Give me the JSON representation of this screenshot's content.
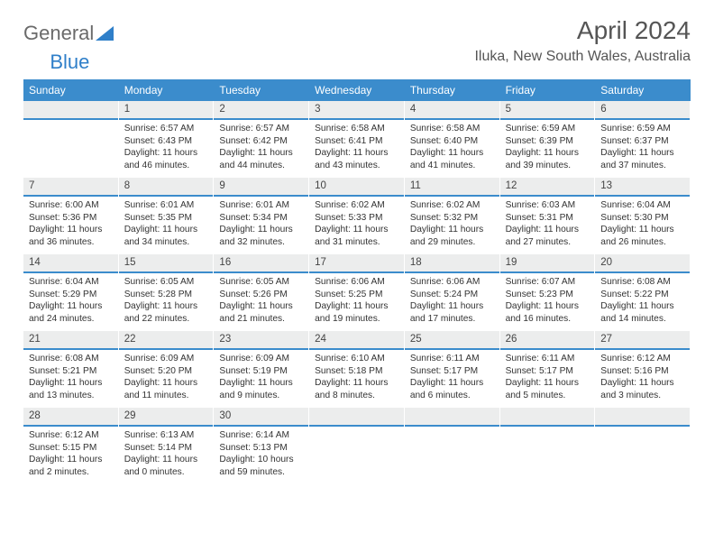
{
  "logo": {
    "part1": "General",
    "part2": "Blue"
  },
  "month_title": "April 2024",
  "location": "Iluka, New South Wales, Australia",
  "colors": {
    "header_bg": "#3b8ccc",
    "header_text": "#ffffff",
    "daynum_bg": "#eceded",
    "daynum_border": "#3b8ccc",
    "page_bg": "#ffffff",
    "text": "#333333",
    "logo_gray": "#6a6a6a",
    "logo_blue": "#2f7fc9"
  },
  "day_names": [
    "Sunday",
    "Monday",
    "Tuesday",
    "Wednesday",
    "Thursday",
    "Friday",
    "Saturday"
  ],
  "grid": {
    "columns": 7,
    "rows": 5,
    "first_weekday_index": 1,
    "days_in_month": 30
  },
  "days": [
    {
      "n": "1",
      "sunrise": "Sunrise: 6:57 AM",
      "sunset": "Sunset: 6:43 PM",
      "daylight": "Daylight: 11 hours and 46 minutes."
    },
    {
      "n": "2",
      "sunrise": "Sunrise: 6:57 AM",
      "sunset": "Sunset: 6:42 PM",
      "daylight": "Daylight: 11 hours and 44 minutes."
    },
    {
      "n": "3",
      "sunrise": "Sunrise: 6:58 AM",
      "sunset": "Sunset: 6:41 PM",
      "daylight": "Daylight: 11 hours and 43 minutes."
    },
    {
      "n": "4",
      "sunrise": "Sunrise: 6:58 AM",
      "sunset": "Sunset: 6:40 PM",
      "daylight": "Daylight: 11 hours and 41 minutes."
    },
    {
      "n": "5",
      "sunrise": "Sunrise: 6:59 AM",
      "sunset": "Sunset: 6:39 PM",
      "daylight": "Daylight: 11 hours and 39 minutes."
    },
    {
      "n": "6",
      "sunrise": "Sunrise: 6:59 AM",
      "sunset": "Sunset: 6:37 PM",
      "daylight": "Daylight: 11 hours and 37 minutes."
    },
    {
      "n": "7",
      "sunrise": "Sunrise: 6:00 AM",
      "sunset": "Sunset: 5:36 PM",
      "daylight": "Daylight: 11 hours and 36 minutes."
    },
    {
      "n": "8",
      "sunrise": "Sunrise: 6:01 AM",
      "sunset": "Sunset: 5:35 PM",
      "daylight": "Daylight: 11 hours and 34 minutes."
    },
    {
      "n": "9",
      "sunrise": "Sunrise: 6:01 AM",
      "sunset": "Sunset: 5:34 PM",
      "daylight": "Daylight: 11 hours and 32 minutes."
    },
    {
      "n": "10",
      "sunrise": "Sunrise: 6:02 AM",
      "sunset": "Sunset: 5:33 PM",
      "daylight": "Daylight: 11 hours and 31 minutes."
    },
    {
      "n": "11",
      "sunrise": "Sunrise: 6:02 AM",
      "sunset": "Sunset: 5:32 PM",
      "daylight": "Daylight: 11 hours and 29 minutes."
    },
    {
      "n": "12",
      "sunrise": "Sunrise: 6:03 AM",
      "sunset": "Sunset: 5:31 PM",
      "daylight": "Daylight: 11 hours and 27 minutes."
    },
    {
      "n": "13",
      "sunrise": "Sunrise: 6:04 AM",
      "sunset": "Sunset: 5:30 PM",
      "daylight": "Daylight: 11 hours and 26 minutes."
    },
    {
      "n": "14",
      "sunrise": "Sunrise: 6:04 AM",
      "sunset": "Sunset: 5:29 PM",
      "daylight": "Daylight: 11 hours and 24 minutes."
    },
    {
      "n": "15",
      "sunrise": "Sunrise: 6:05 AM",
      "sunset": "Sunset: 5:28 PM",
      "daylight": "Daylight: 11 hours and 22 minutes."
    },
    {
      "n": "16",
      "sunrise": "Sunrise: 6:05 AM",
      "sunset": "Sunset: 5:26 PM",
      "daylight": "Daylight: 11 hours and 21 minutes."
    },
    {
      "n": "17",
      "sunrise": "Sunrise: 6:06 AM",
      "sunset": "Sunset: 5:25 PM",
      "daylight": "Daylight: 11 hours and 19 minutes."
    },
    {
      "n": "18",
      "sunrise": "Sunrise: 6:06 AM",
      "sunset": "Sunset: 5:24 PM",
      "daylight": "Daylight: 11 hours and 17 minutes."
    },
    {
      "n": "19",
      "sunrise": "Sunrise: 6:07 AM",
      "sunset": "Sunset: 5:23 PM",
      "daylight": "Daylight: 11 hours and 16 minutes."
    },
    {
      "n": "20",
      "sunrise": "Sunrise: 6:08 AM",
      "sunset": "Sunset: 5:22 PM",
      "daylight": "Daylight: 11 hours and 14 minutes."
    },
    {
      "n": "21",
      "sunrise": "Sunrise: 6:08 AM",
      "sunset": "Sunset: 5:21 PM",
      "daylight": "Daylight: 11 hours and 13 minutes."
    },
    {
      "n": "22",
      "sunrise": "Sunrise: 6:09 AM",
      "sunset": "Sunset: 5:20 PM",
      "daylight": "Daylight: 11 hours and 11 minutes."
    },
    {
      "n": "23",
      "sunrise": "Sunrise: 6:09 AM",
      "sunset": "Sunset: 5:19 PM",
      "daylight": "Daylight: 11 hours and 9 minutes."
    },
    {
      "n": "24",
      "sunrise": "Sunrise: 6:10 AM",
      "sunset": "Sunset: 5:18 PM",
      "daylight": "Daylight: 11 hours and 8 minutes."
    },
    {
      "n": "25",
      "sunrise": "Sunrise: 6:11 AM",
      "sunset": "Sunset: 5:17 PM",
      "daylight": "Daylight: 11 hours and 6 minutes."
    },
    {
      "n": "26",
      "sunrise": "Sunrise: 6:11 AM",
      "sunset": "Sunset: 5:17 PM",
      "daylight": "Daylight: 11 hours and 5 minutes."
    },
    {
      "n": "27",
      "sunrise": "Sunrise: 6:12 AM",
      "sunset": "Sunset: 5:16 PM",
      "daylight": "Daylight: 11 hours and 3 minutes."
    },
    {
      "n": "28",
      "sunrise": "Sunrise: 6:12 AM",
      "sunset": "Sunset: 5:15 PM",
      "daylight": "Daylight: 11 hours and 2 minutes."
    },
    {
      "n": "29",
      "sunrise": "Sunrise: 6:13 AM",
      "sunset": "Sunset: 5:14 PM",
      "daylight": "Daylight: 11 hours and 0 minutes."
    },
    {
      "n": "30",
      "sunrise": "Sunrise: 6:14 AM",
      "sunset": "Sunset: 5:13 PM",
      "daylight": "Daylight: 10 hours and 59 minutes."
    }
  ]
}
